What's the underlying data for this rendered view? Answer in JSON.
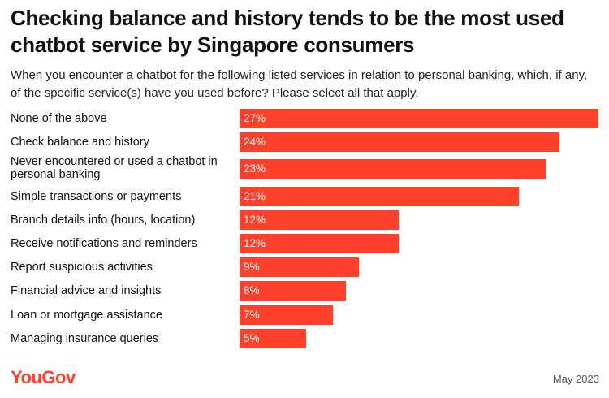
{
  "chart_data": {
    "type": "bar",
    "orientation": "horizontal",
    "title": "Checking balance and history tends to be the most used chatbot service by Singapore consumers",
    "subtitle": "When you encounter a chatbot for the following listed services in relation to personal banking, which, if any, of the specific service(s) have you used before? Please select all that apply.",
    "categories": [
      "None of the above",
      "Check balance and history",
      "Never encountered or used a chatbot in personal banking",
      "Simple transactions or payments",
      "Branch details info (hours, location)",
      "Receive notifications and reminders",
      "Report suspicious activities",
      "Financial advice and insights",
      "Loan or mortgage assistance",
      "Managing insurance queries"
    ],
    "values": [
      27,
      24,
      23,
      21,
      12,
      12,
      9,
      8,
      7,
      5
    ],
    "value_labels": [
      "27%",
      "24%",
      "23%",
      "21%",
      "12%",
      "12%",
      "9%",
      "8%",
      "7%",
      "5%"
    ],
    "xlim": [
      0,
      27
    ],
    "grid": false,
    "bar_color": "#ff412c"
  },
  "footer": {
    "brand": "YouGov",
    "date": "May 2023"
  },
  "colors": {
    "accent": "#ff412c",
    "text": "#111111"
  }
}
